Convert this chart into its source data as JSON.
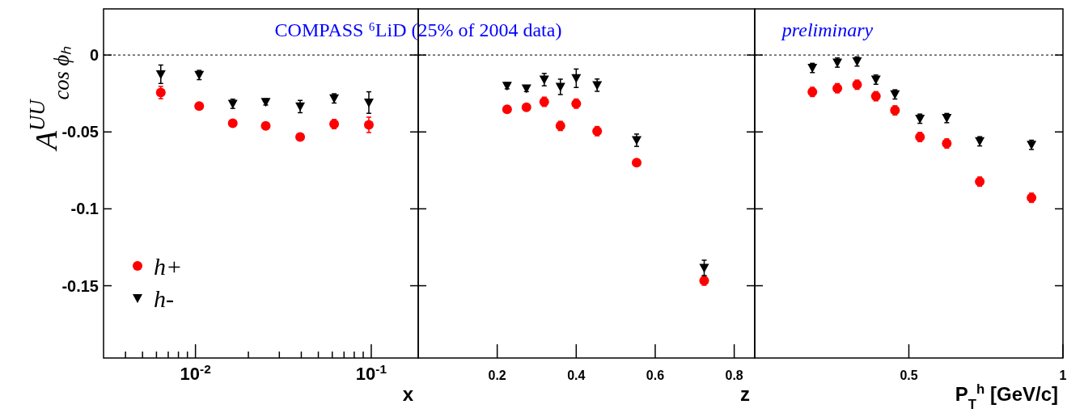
{
  "chart_data": [
    {
      "type": "scatter",
      "title": "COMPASS ⁶LiD (25% of 2004 data)",
      "xlabel": "x",
      "ylabel": "A$^{UU}$$_{cos ϕₕ}$",
      "log": "x",
      "xlim": [
        0.003,
        0.185
      ],
      "xticks": [
        {
          "value": 0.004,
          "label": null
        },
        {
          "value": 0.005,
          "label": null
        },
        {
          "value": 0.006,
          "label": null
        },
        {
          "value": 0.007,
          "label": null
        },
        {
          "value": 0.008,
          "label": null
        },
        {
          "value": 0.009,
          "label": null
        },
        {
          "value": 0.01,
          "label": "10$^{-2}$"
        },
        {
          "value": 0.02,
          "label": null
        },
        {
          "value": 0.03,
          "label": null
        },
        {
          "value": 0.04,
          "label": null
        },
        {
          "value": 0.05,
          "label": null
        },
        {
          "value": 0.06,
          "label": null
        },
        {
          "value": 0.07,
          "label": null
        },
        {
          "value": 0.08,
          "label": null
        },
        {
          "value": 0.09,
          "label": null
        },
        {
          "value": 0.1,
          "label": "10$^{-1}$"
        }
      ],
      "ylim": [
        -0.197,
        0.03
      ],
      "yticks": [
        0,
        -0.05,
        -0.1,
        -0.15
      ],
      "legend": "bottom left",
      "grid": false,
      "ref_lines": [
        {
          "axis": "y",
          "value": 0,
          "line_style": "dotted",
          "color": "#000000"
        }
      ],
      "x": [
        0.00635,
        0.0105,
        0.0163,
        0.0251,
        0.0394,
        0.0615,
        0.0969
      ],
      "series": [
        {
          "name": "h+",
          "color": "#ff0000",
          "marker": "circle",
          "values": [
            -0.0244,
            -0.0332,
            -0.0444,
            -0.0461,
            -0.0533,
            -0.0449,
            -0.0454
          ],
          "errors": [
            0.004,
            0.002,
            0.002,
            0.002,
            0.002,
            0.003,
            0.005
          ]
        },
        {
          "name": "h-",
          "color": "#000000",
          "marker": "triangle",
          "values": [
            -0.0125,
            -0.013,
            -0.0317,
            -0.0305,
            -0.0335,
            -0.0282,
            -0.0309
          ],
          "errors": [
            0.006,
            0.003,
            0.003,
            0.002,
            0.004,
            0.003,
            0.007
          ]
        }
      ]
    },
    {
      "type": "scatter",
      "xlabel": "z",
      "xlim": [
        0,
        0.852
      ],
      "xticks": [
        0.2,
        0.4,
        0.6,
        0.8
      ],
      "ylim": [
        -0.197,
        0.03
      ],
      "yticks": [
        0,
        -0.05,
        -0.1,
        -0.15
      ],
      "tick_labels": "x",
      "grid": false,
      "ref_lines": [
        {
          "axis": "y",
          "value": 0,
          "line_style": "dotted",
          "color": "#000000"
        }
      ],
      "x": [
        0.225,
        0.274,
        0.319,
        0.36,
        0.4,
        0.453,
        0.553,
        0.724
      ],
      "series": [
        {
          "color": "#ff0000",
          "marker": "circle",
          "values": [
            -0.0353,
            -0.034,
            -0.0304,
            -0.0461,
            -0.0316,
            -0.0495,
            -0.07,
            -0.1467
          ],
          "errors": [
            0.002,
            0.002,
            0.003,
            0.003,
            0.003,
            0.003,
            0.002,
            0.003
          ]
        },
        {
          "color": "#000000",
          "marker": "triangle",
          "values": [
            -0.02,
            -0.0218,
            -0.016,
            -0.0207,
            -0.0151,
            -0.0196,
            -0.0554,
            -0.1384
          ],
          "errors": [
            0.002,
            0.002,
            0.004,
            0.005,
            0.006,
            0.004,
            0.004,
            0.005
          ]
        }
      ]
    },
    {
      "type": "scatter",
      "xlabel": "P$_{T}$$^{h}$ [GeV/c]",
      "xlim": [
        0,
        1
      ],
      "xticks": [
        0.5,
        1
      ],
      "ylim": [
        -0.197,
        0.03
      ],
      "yticks": [
        0,
        -0.05,
        -0.1,
        -0.15
      ],
      "tick_labels": "x",
      "grid": false,
      "annotations": [
        "preliminary"
      ],
      "ref_lines": [
        {
          "axis": "y",
          "value": 0,
          "line_style": "dotted",
          "color": "#000000"
        }
      ],
      "x": [
        0.187,
        0.268,
        0.332,
        0.393,
        0.455,
        0.536,
        0.623,
        0.73,
        0.898
      ],
      "series": [
        {
          "color": "#ff0000",
          "marker": "circle",
          "values": [
            -0.024,
            -0.0216,
            -0.0193,
            -0.0268,
            -0.036,
            -0.0533,
            -0.0575,
            -0.0823,
            -0.0928
          ],
          "errors": [
            0.003,
            0.003,
            0.003,
            0.003,
            0.003,
            0.003,
            0.003,
            0.003,
            0.003
          ]
        },
        {
          "color": "#000000",
          "marker": "triangle",
          "values": [
            -0.0084,
            -0.0049,
            -0.0042,
            -0.016,
            -0.0256,
            -0.0414,
            -0.041,
            -0.0561,
            -0.0584
          ],
          "errors": [
            0.003,
            0.003,
            0.003,
            0.003,
            0.003,
            0.003,
            0.003,
            0.003,
            0.003
          ]
        }
      ]
    }
  ]
}
